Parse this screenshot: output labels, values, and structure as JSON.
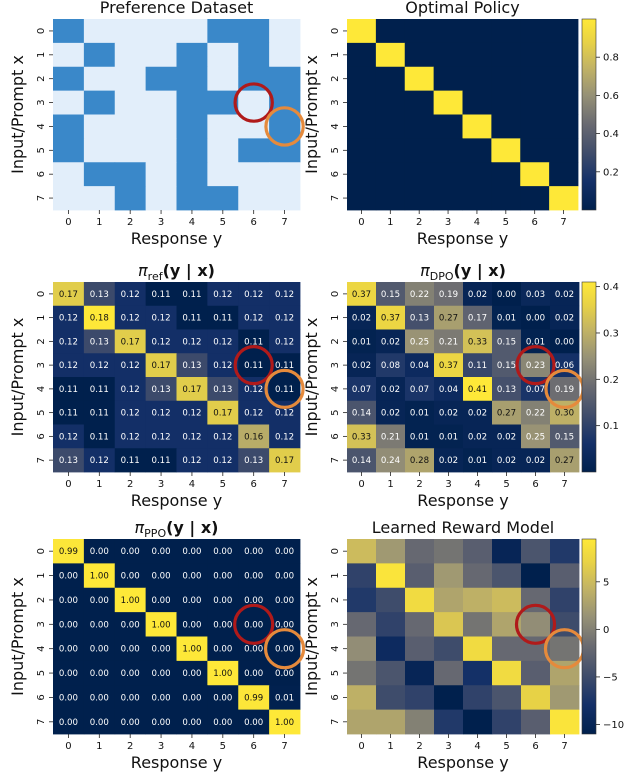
{
  "chart_data": [
    {
      "type": "heatmap",
      "title": "Preference Dataset",
      "title_style": "plain",
      "xlabel": "Response y",
      "ylabel": "Input/Prompt x",
      "x_ticks": [
        "0",
        "1",
        "2",
        "3",
        "4",
        "5",
        "6",
        "7"
      ],
      "y_ticks": [
        "0",
        "1",
        "2",
        "3",
        "4",
        "5",
        "6",
        "7"
      ],
      "colors": {
        "chosen": "#3a88c9",
        "other": "#e2eefa"
      },
      "values": [
        [
          1,
          0,
          0,
          0,
          0,
          1,
          1,
          0
        ],
        [
          0,
          1,
          0,
          0,
          1,
          0,
          1,
          0
        ],
        [
          1,
          0,
          0,
          1,
          1,
          0,
          1,
          1
        ],
        [
          0,
          1,
          0,
          0,
          1,
          1,
          0,
          1
        ],
        [
          1,
          0,
          0,
          0,
          1,
          0,
          0,
          1
        ],
        [
          1,
          0,
          0,
          0,
          1,
          0,
          1,
          1
        ],
        [
          0,
          1,
          1,
          0,
          1,
          0,
          0,
          0
        ],
        [
          0,
          0,
          1,
          0,
          1,
          1,
          0,
          0
        ]
      ],
      "show_values": false,
      "circles": [
        {
          "row": 3,
          "col": 6,
          "color": "#b01a1a"
        },
        {
          "row": 4,
          "col": 7,
          "color": "#e58a3c"
        }
      ]
    },
    {
      "type": "heatmap",
      "title": "Optimal Policy",
      "title_style": "plain",
      "xlabel": "Response y",
      "ylabel": "Input/Prompt x",
      "x_ticks": [
        "0",
        "1",
        "2",
        "3",
        "4",
        "5",
        "6",
        "7"
      ],
      "y_ticks": [
        "0",
        "1",
        "2",
        "3",
        "4",
        "5",
        "6",
        "7"
      ],
      "colormap": "cividis",
      "vmin": 0,
      "vmax": 1,
      "values": [
        [
          1,
          0,
          0,
          0,
          0,
          0,
          0,
          0
        ],
        [
          0,
          1,
          0,
          0,
          0,
          0,
          0,
          0
        ],
        [
          0,
          0,
          1,
          0,
          0,
          0,
          0,
          0
        ],
        [
          0,
          0,
          0,
          1,
          0,
          0,
          0,
          0
        ],
        [
          0,
          0,
          0,
          0,
          1,
          0,
          0,
          0
        ],
        [
          0,
          0,
          0,
          0,
          0,
          1,
          0,
          0
        ],
        [
          0,
          0,
          0,
          0,
          0,
          0,
          1,
          0
        ],
        [
          0,
          0,
          0,
          0,
          0,
          0,
          0,
          1
        ]
      ],
      "show_values": false,
      "colorbar_ticks": [
        "0.2",
        "0.4",
        "0.6",
        "0.8"
      ],
      "colorbar_tick_values": [
        0.2,
        0.4,
        0.6,
        0.8
      ],
      "circles": []
    },
    {
      "type": "heatmap",
      "title_base": "π",
      "title_sub": "ref",
      "title_rest": "(y | x)",
      "title_style": "math",
      "xlabel": "Response y",
      "ylabel": "Input/Prompt x",
      "x_ticks": [
        "0",
        "1",
        "2",
        "3",
        "4",
        "5",
        "6",
        "7"
      ],
      "y_ticks": [
        "0",
        "1",
        "2",
        "3",
        "4",
        "5",
        "6",
        "7"
      ],
      "colormap": "cividis",
      "vmin": 0.11,
      "vmax": 0.18,
      "values": [
        [
          0.17,
          0.13,
          0.12,
          0.11,
          0.11,
          0.12,
          0.12,
          0.12
        ],
        [
          0.12,
          0.18,
          0.12,
          0.12,
          0.11,
          0.11,
          0.12,
          0.12
        ],
        [
          0.12,
          0.13,
          0.17,
          0.12,
          0.12,
          0.12,
          0.11,
          0.12
        ],
        [
          0.12,
          0.12,
          0.12,
          0.17,
          0.13,
          0.12,
          0.11,
          0.11
        ],
        [
          0.11,
          0.11,
          0.12,
          0.13,
          0.17,
          0.13,
          0.12,
          0.11
        ],
        [
          0.11,
          0.11,
          0.12,
          0.12,
          0.12,
          0.17,
          0.12,
          0.12
        ],
        [
          0.12,
          0.11,
          0.12,
          0.12,
          0.12,
          0.12,
          0.16,
          0.12
        ],
        [
          0.13,
          0.12,
          0.11,
          0.11,
          0.12,
          0.12,
          0.13,
          0.17
        ]
      ],
      "show_values": true,
      "value_format": 2,
      "circles": [
        {
          "row": 3,
          "col": 6,
          "color": "#b01a1a"
        },
        {
          "row": 4,
          "col": 7,
          "color": "#e58a3c"
        }
      ]
    },
    {
      "type": "heatmap",
      "title_base": "π",
      "title_sub": "DPO",
      "title_rest": "(y | x)",
      "title_style": "math",
      "xlabel": "Response y",
      "ylabel": "Input/Prompt x",
      "x_ticks": [
        "0",
        "1",
        "2",
        "3",
        "4",
        "5",
        "6",
        "7"
      ],
      "y_ticks": [
        "0",
        "1",
        "2",
        "3",
        "4",
        "5",
        "6",
        "7"
      ],
      "colormap": "cividis",
      "vmin": 0,
      "vmax": 0.41,
      "values": [
        [
          0.37,
          0.15,
          0.22,
          0.19,
          0.02,
          0.0,
          0.03,
          0.02
        ],
        [
          0.02,
          0.37,
          0.13,
          0.27,
          0.17,
          0.01,
          0.0,
          0.02
        ],
        [
          0.01,
          0.02,
          0.25,
          0.21,
          0.33,
          0.15,
          0.01,
          0.0
        ],
        [
          0.02,
          0.08,
          0.04,
          0.37,
          0.11,
          0.15,
          0.23,
          0.06
        ],
        [
          0.07,
          0.02,
          0.07,
          0.04,
          0.41,
          0.13,
          0.07,
          0.19
        ],
        [
          0.14,
          0.02,
          0.01,
          0.02,
          0.02,
          0.27,
          0.22,
          0.3
        ],
        [
          0.33,
          0.21,
          0.01,
          0.01,
          0.02,
          0.02,
          0.25,
          0.15
        ],
        [
          0.14,
          0.24,
          0.28,
          0.02,
          0.01,
          0.02,
          0.02,
          0.27
        ]
      ],
      "show_values": true,
      "value_format": 2,
      "colorbar_ticks": [
        "0.1",
        "0.2",
        "0.3",
        "0.4"
      ],
      "colorbar_tick_values": [
        0.1,
        0.2,
        0.3,
        0.4
      ],
      "circles": [
        {
          "row": 3,
          "col": 6,
          "color": "#b01a1a"
        },
        {
          "row": 4,
          "col": 7,
          "color": "#e58a3c"
        }
      ]
    },
    {
      "type": "heatmap",
      "title_base": "π",
      "title_sub": "PPO",
      "title_rest": "(y | x)",
      "title_style": "math",
      "xlabel": "Response y",
      "ylabel": "Input/Prompt x",
      "x_ticks": [
        "0",
        "1",
        "2",
        "3",
        "4",
        "5",
        "6",
        "7"
      ],
      "y_ticks": [
        "0",
        "1",
        "2",
        "3",
        "4",
        "5",
        "6",
        "7"
      ],
      "colormap": "cividis",
      "vmin": 0,
      "vmax": 1,
      "values": [
        [
          0.99,
          0.0,
          0.0,
          0.0,
          0.0,
          0.0,
          0.0,
          0.0
        ],
        [
          0.0,
          1.0,
          0.0,
          0.0,
          0.0,
          0.0,
          0.0,
          0.0
        ],
        [
          0.0,
          0.0,
          1.0,
          0.0,
          0.0,
          0.0,
          0.0,
          0.0
        ],
        [
          0.0,
          0.0,
          0.0,
          1.0,
          0.0,
          0.0,
          0.0,
          0.0
        ],
        [
          0.0,
          0.0,
          0.0,
          0.0,
          1.0,
          0.0,
          0.0,
          0.0
        ],
        [
          0.0,
          0.0,
          0.0,
          0.0,
          0.0,
          1.0,
          0.0,
          0.0
        ],
        [
          0.0,
          0.0,
          0.0,
          0.0,
          0.0,
          0.0,
          0.99,
          0.01
        ],
        [
          0.0,
          0.0,
          0.0,
          0.0,
          0.0,
          0.0,
          0.0,
          1.0
        ]
      ],
      "show_values": true,
      "value_format": 2,
      "circles": [
        {
          "row": 3,
          "col": 6,
          "color": "#b01a1a"
        },
        {
          "row": 4,
          "col": 7,
          "color": "#e58a3c"
        }
      ]
    },
    {
      "type": "heatmap",
      "title": "Learned Reward Model",
      "title_style": "plain",
      "xlabel": "Response y",
      "ylabel": "Input/Prompt x",
      "x_ticks": [
        "0",
        "1",
        "2",
        "3",
        "4",
        "5",
        "6",
        "7"
      ],
      "y_ticks": [
        "0",
        "1",
        "2",
        "3",
        "4",
        "5",
        "6",
        "7"
      ],
      "colormap": "cividis",
      "vmin": -11,
      "vmax": 9.5,
      "values": [
        [
          5,
          2,
          -2,
          -1,
          -3,
          -10,
          -4,
          -7
        ],
        [
          -6,
          9,
          -3,
          2,
          -2,
          -4,
          -11,
          -3
        ],
        [
          -7,
          -5,
          8,
          3,
          4,
          5,
          -2,
          -6
        ],
        [
          -2,
          -6,
          -2,
          6,
          -1,
          3,
          1,
          -5
        ],
        [
          1,
          -9,
          -3,
          -5,
          8,
          -2,
          -2,
          -1
        ],
        [
          -1,
          -4,
          -10,
          -2,
          -8,
          8,
          -3,
          3
        ],
        [
          4,
          -5,
          -6,
          -11,
          -6,
          -4,
          7,
          2
        ],
        [
          3,
          3,
          0,
          -7,
          -11,
          -6,
          -3,
          9
        ]
      ],
      "show_values": false,
      "colorbar_ticks": [
        "−10",
        "−5",
        "0",
        "5"
      ],
      "colorbar_tick_values": [
        -10,
        -5,
        0,
        5
      ],
      "circles": [
        {
          "row": 3,
          "col": 6,
          "color": "#b01a1a"
        },
        {
          "row": 4,
          "col": 7,
          "color": "#e58a3c"
        }
      ]
    }
  ]
}
